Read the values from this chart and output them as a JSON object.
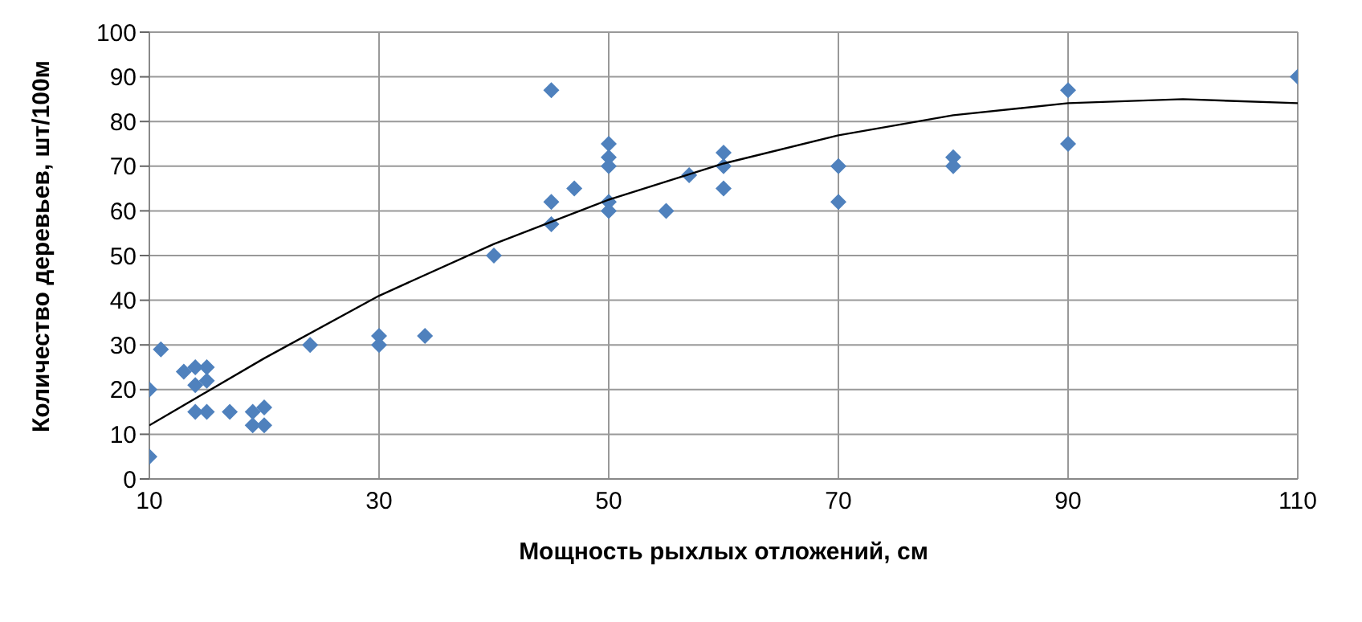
{
  "chart_data": {
    "type": "scatter",
    "xlabel": "Мощность рыхлых отложений, см",
    "ylabel": "Количество деревьев, шт/100м",
    "xlim": [
      10,
      110
    ],
    "xticks": [
      10,
      30,
      50,
      70,
      90,
      110
    ],
    "ylim": [
      0,
      100
    ],
    "yticks": [
      0,
      10,
      20,
      30,
      40,
      50,
      60,
      70,
      80,
      90,
      100
    ],
    "grid": true,
    "series": [
      {
        "color": "#4f81bd",
        "marker": "diamond",
        "x": [
          10,
          10,
          11,
          13,
          14,
          14,
          14,
          15,
          15,
          15,
          17,
          19,
          19,
          20,
          20,
          24,
          30,
          30,
          34,
          40,
          45,
          45,
          45,
          47,
          50,
          50,
          50,
          50,
          50,
          55,
          57,
          60,
          60,
          60,
          70,
          70,
          80,
          80,
          90,
          90,
          110
        ],
        "values": [
          20,
          5,
          29,
          24,
          25,
          21,
          15,
          25,
          22,
          15,
          15,
          15,
          12,
          16,
          12,
          30,
          32,
          30,
          32,
          50,
          87,
          62,
          57,
          65,
          75,
          72,
          70,
          62,
          60,
          60,
          68,
          73,
          70,
          65,
          70,
          62,
          72,
          70,
          87,
          75,
          90
        ]
      },
      {
        "type": "line",
        "color": "#000000",
        "marker": "none",
        "line_style": "solid",
        "x": [
          10,
          20,
          30,
          40,
          50,
          60,
          70,
          80,
          90,
          100,
          110
        ],
        "values": [
          12,
          27,
          41,
          52.6,
          62.5,
          70.6,
          76.9,
          81.4,
          84.1,
          85,
          84.1
        ]
      }
    ]
  }
}
